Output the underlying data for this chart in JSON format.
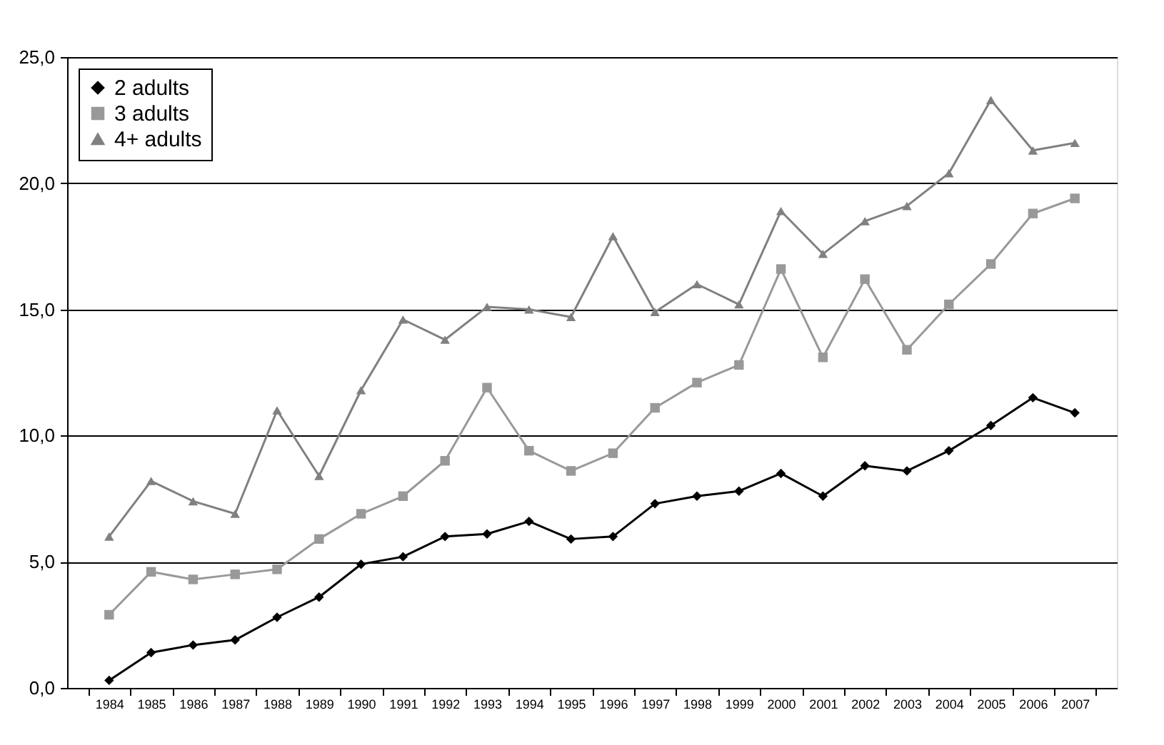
{
  "chart_data": {
    "type": "line",
    "categories": [
      "1984",
      "1985",
      "1986",
      "1987",
      "1988",
      "1989",
      "1990",
      "1991",
      "1992",
      "1993",
      "1994",
      "1995",
      "1996",
      "1997",
      "1998",
      "1999",
      "2000",
      "2001",
      "2002",
      "2003",
      "2004",
      "2005",
      "2006",
      "2007"
    ],
    "series": [
      {
        "name": "2 adults",
        "color": "#000000",
        "marker": "diamond",
        "values": [
          0.3,
          1.4,
          1.7,
          1.9,
          2.8,
          3.6,
          4.9,
          5.2,
          6.0,
          6.1,
          6.6,
          5.9,
          6.0,
          7.3,
          7.6,
          7.8,
          8.5,
          7.6,
          8.8,
          8.6,
          9.4,
          10.4,
          11.5,
          10.9
        ]
      },
      {
        "name": "3 adults",
        "color": "#999999",
        "marker": "square",
        "values": [
          2.9,
          4.6,
          4.3,
          4.5,
          4.7,
          5.9,
          6.9,
          7.6,
          9.0,
          11.9,
          9.4,
          8.6,
          9.3,
          11.1,
          12.1,
          12.8,
          16.6,
          13.1,
          16.2,
          13.4,
          15.2,
          16.8,
          18.8,
          19.4
        ]
      },
      {
        "name": "4+ adults",
        "color": "#808080",
        "marker": "triangle",
        "values": [
          6.0,
          8.2,
          7.4,
          6.9,
          11.0,
          8.4,
          11.8,
          14.6,
          13.8,
          15.1,
          15.0,
          14.7,
          17.9,
          14.9,
          16.0,
          15.2,
          18.9,
          17.2,
          18.5,
          19.1,
          20.4,
          23.3,
          21.3,
          21.6
        ]
      }
    ],
    "ylim": [
      0,
      25
    ],
    "yticks": [
      {
        "value": 0,
        "label": "0,0"
      },
      {
        "value": 5,
        "label": "5,0"
      },
      {
        "value": 10,
        "label": "10,0"
      },
      {
        "value": 15,
        "label": "15,0"
      },
      {
        "value": 20,
        "label": "20,0"
      },
      {
        "value": 25,
        "label": "25,0"
      }
    ],
    "grid": "y",
    "legend": "top left",
    "line_style": "solid"
  }
}
